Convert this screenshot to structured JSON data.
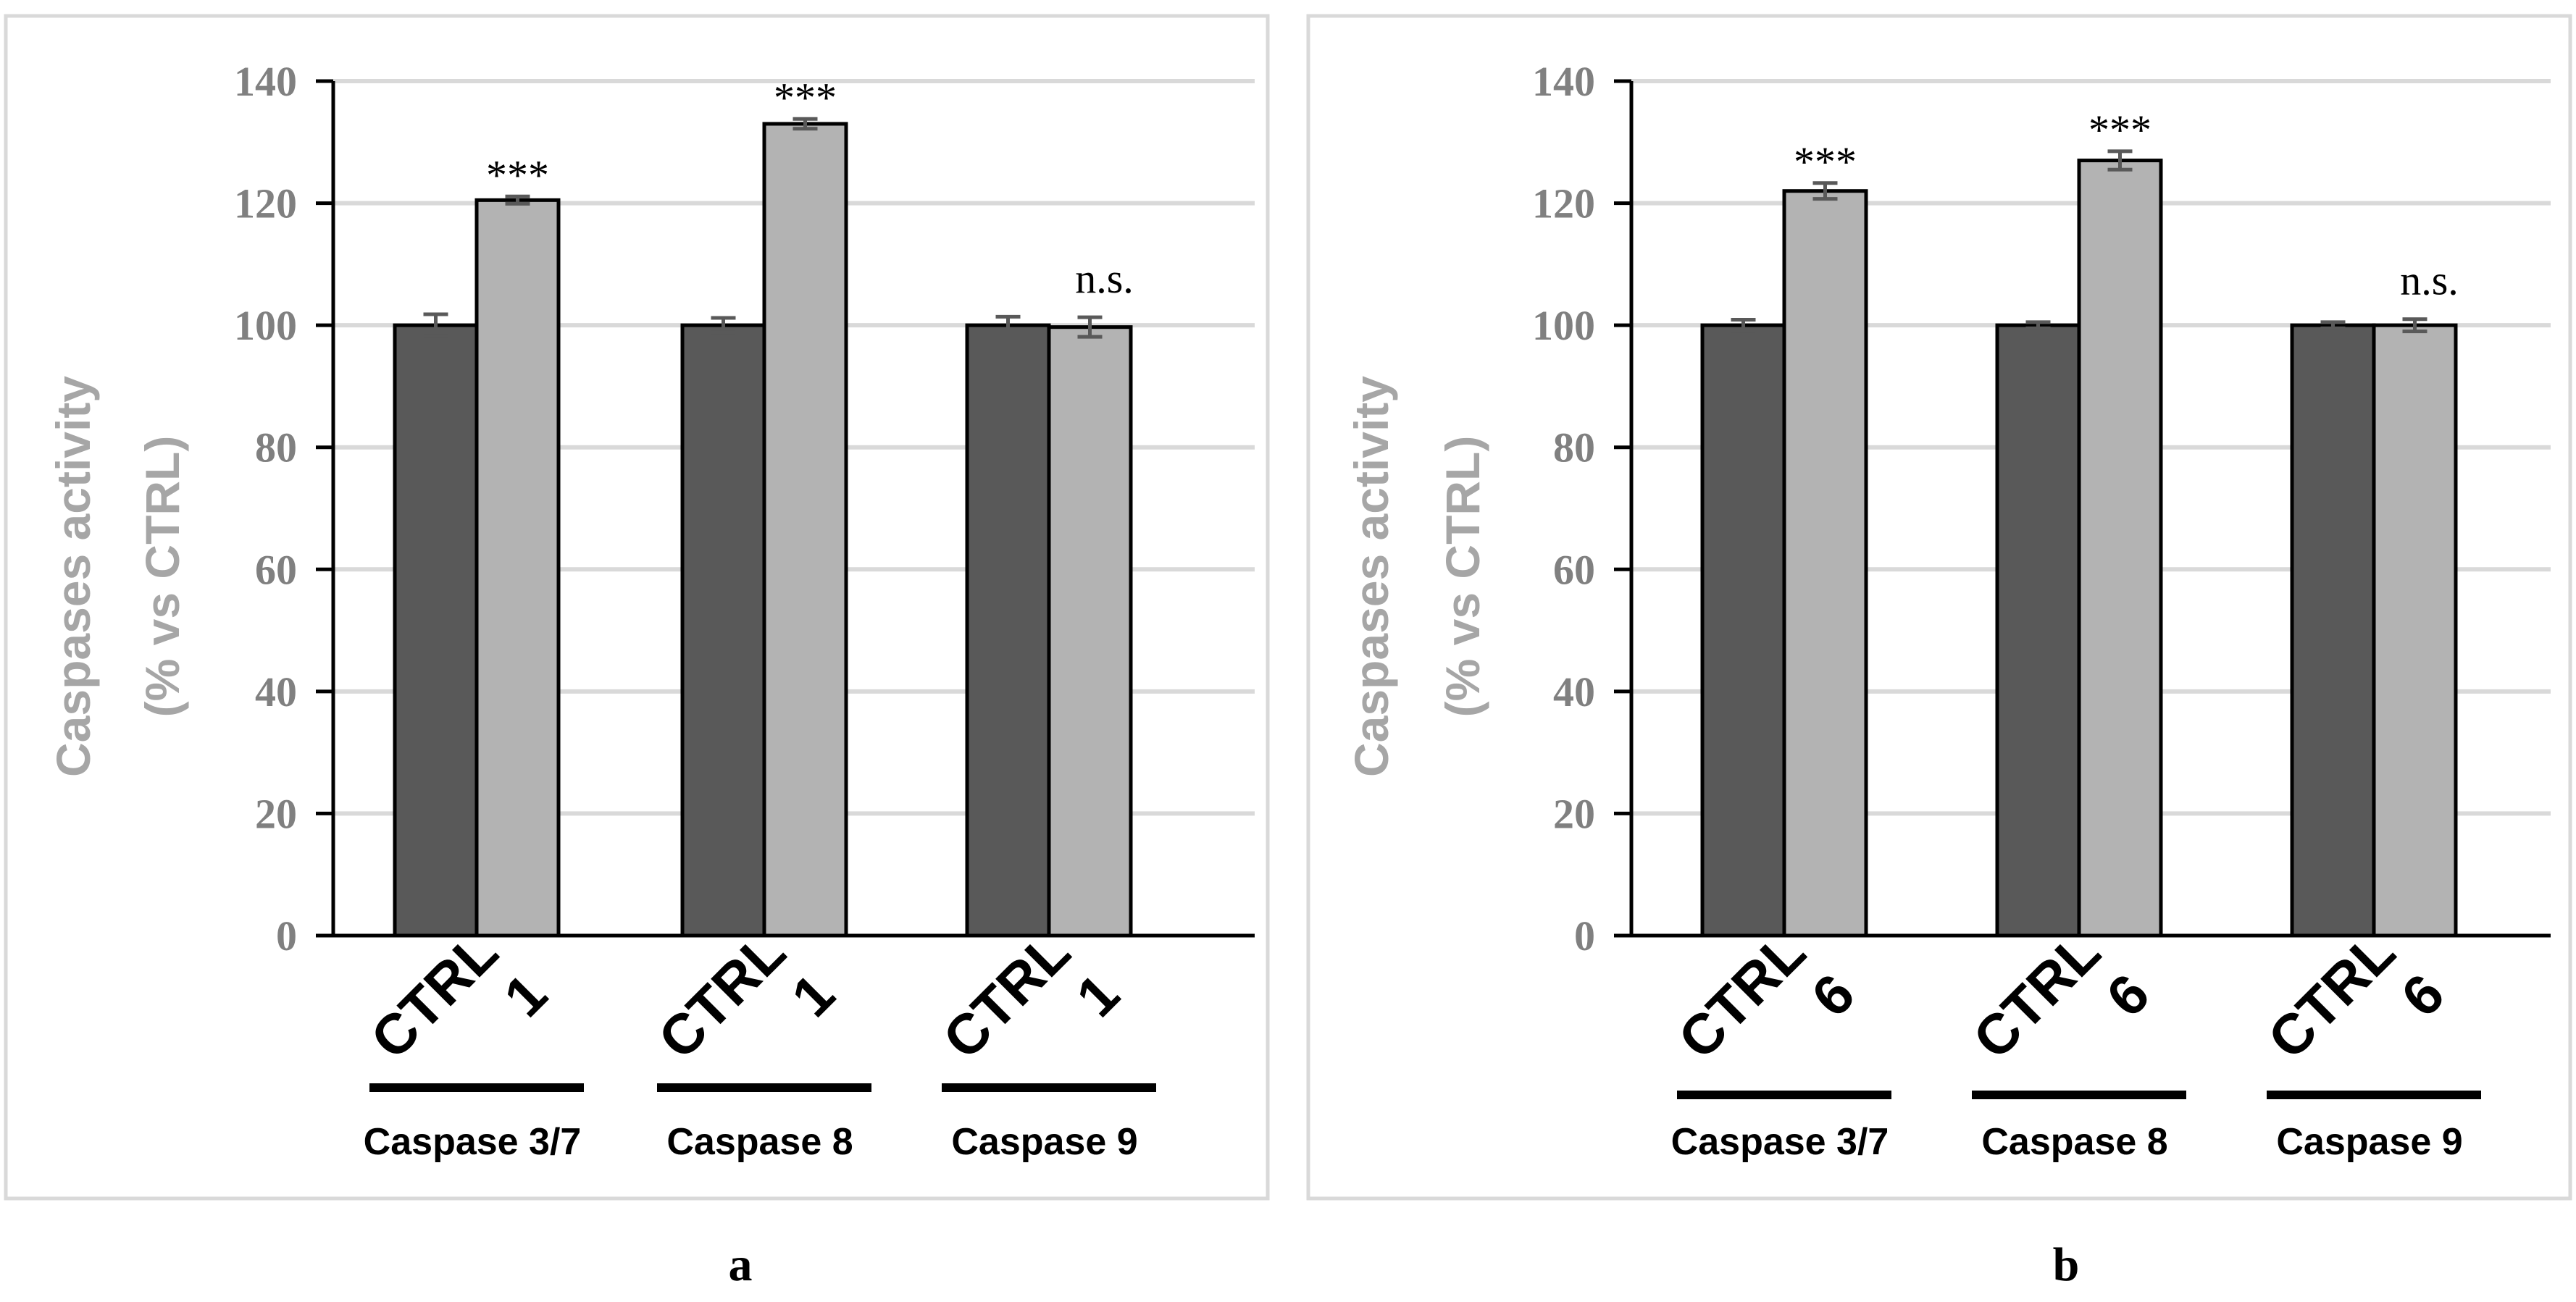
{
  "chart_data": [
    {
      "type": "bar",
      "panel_label": "a",
      "ylabel_line1": "Caspases activity",
      "ylabel_line2": "(% vs CTRL)",
      "ylim": [
        0,
        140
      ],
      "yticks": [
        "0",
        "20",
        "40",
        "60",
        "80",
        "100",
        "120",
        "140"
      ],
      "grid": true,
      "groups": [
        {
          "label": "Caspase 3/7",
          "bars": [
            {
              "category": "CTRL",
              "value": 100,
              "error": 1.8,
              "color": "#595959"
            },
            {
              "category": "1",
              "value": 120.5,
              "error": 0.6,
              "color": "#b3b3b3"
            }
          ],
          "significance": "***"
        },
        {
          "label": "Caspase 8",
          "bars": [
            {
              "category": "CTRL",
              "value": 100,
              "error": 1.2,
              "color": "#595959"
            },
            {
              "category": "1",
              "value": 133,
              "error": 0.8,
              "color": "#b3b3b3"
            }
          ],
          "significance": "***"
        },
        {
          "label": "Caspase 9",
          "bars": [
            {
              "category": "CTRL",
              "value": 100,
              "error": 1.4,
              "color": "#595959"
            },
            {
              "category": "1",
              "value": 99.7,
              "error": 1.6,
              "color": "#b3b3b3"
            }
          ],
          "significance": "n.s."
        }
      ]
    },
    {
      "type": "bar",
      "panel_label": "b",
      "ylabel_line1": "Caspases activity",
      "ylabel_line2": "(% vs CTRL)",
      "ylim": [
        0,
        140
      ],
      "yticks": [
        "0",
        "20",
        "40",
        "60",
        "80",
        "100",
        "120",
        "140"
      ],
      "grid": true,
      "groups": [
        {
          "label": "Caspase 3/7",
          "bars": [
            {
              "category": "CTRL",
              "value": 100,
              "error": 0.9,
              "color": "#595959"
            },
            {
              "category": "6",
              "value": 122,
              "error": 1.3,
              "color": "#b3b3b3"
            }
          ],
          "significance": "***"
        },
        {
          "label": "Caspase 8",
          "bars": [
            {
              "category": "CTRL",
              "value": 100,
              "error": 0.5,
              "color": "#595959"
            },
            {
              "category": "6",
              "value": 127,
              "error": 1.5,
              "color": "#b3b3b3"
            }
          ],
          "significance": "***"
        },
        {
          "label": "Caspase 9",
          "bars": [
            {
              "category": "CTRL",
              "value": 100,
              "error": 0.5,
              "color": "#595959"
            },
            {
              "category": "6",
              "value": 100,
              "error": 1.0,
              "color": "#b3b3b3"
            }
          ],
          "significance": "n.s."
        }
      ]
    }
  ]
}
